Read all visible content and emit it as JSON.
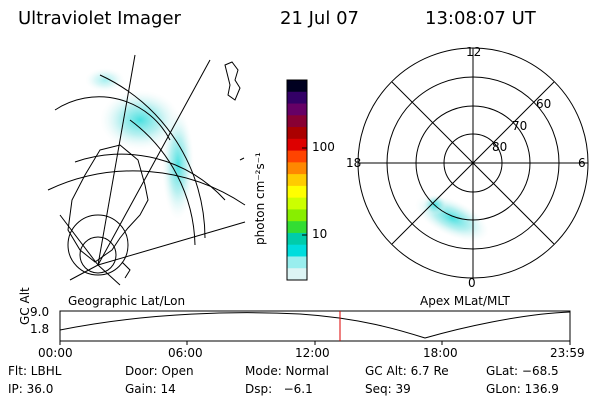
{
  "header": {
    "instrument": "Ultraviolet Imager",
    "date": "21 Jul 07",
    "time": "13:08:07 UT"
  },
  "colorbar": {
    "label": "photon cm⁻²s⁻¹",
    "ticks": [
      "100",
      "10"
    ],
    "colors": [
      "#000020",
      "#330066",
      "#660066",
      "#880033",
      "#aa0000",
      "#dd0000",
      "#ff4400",
      "#ff8800",
      "#ffcc00",
      "#ffff00",
      "#ccff00",
      "#88ee00",
      "#33dd33",
      "#00ccaa",
      "#00dddd",
      "#99eeee",
      "#ddf4f4"
    ]
  },
  "polar_plot": {
    "mlt_labels": {
      "top": "12",
      "right": "6",
      "left": "18",
      "bottom": "0"
    },
    "lat_labels": [
      "60",
      "70",
      "80"
    ]
  },
  "map_label": "Geographic Lat/Lon",
  "apex_label": "Apex MLat/MLT",
  "altitude_plot": {
    "ylabel": "GC Alt",
    "y_ticks": [
      "9.0",
      "1.8"
    ],
    "x_ticks": [
      "00:00",
      "06:00",
      "12:00",
      "18:00",
      "23:59"
    ],
    "current_time_marker": "13:08",
    "marker_color": "#dd0000"
  },
  "footer": {
    "filter": "Flt: LBHL",
    "door": "Door: Open",
    "mode": "Mode: Normal",
    "gc_alt": "GC Alt: 6.7 Re",
    "glat": "GLat: −68.5",
    "ip": "IP: 36.0",
    "gain": "Gain: 14",
    "dsp": "Dsp:   −6.1",
    "seq": "Seq: 39",
    "glon": "GLon: 136.9"
  }
}
